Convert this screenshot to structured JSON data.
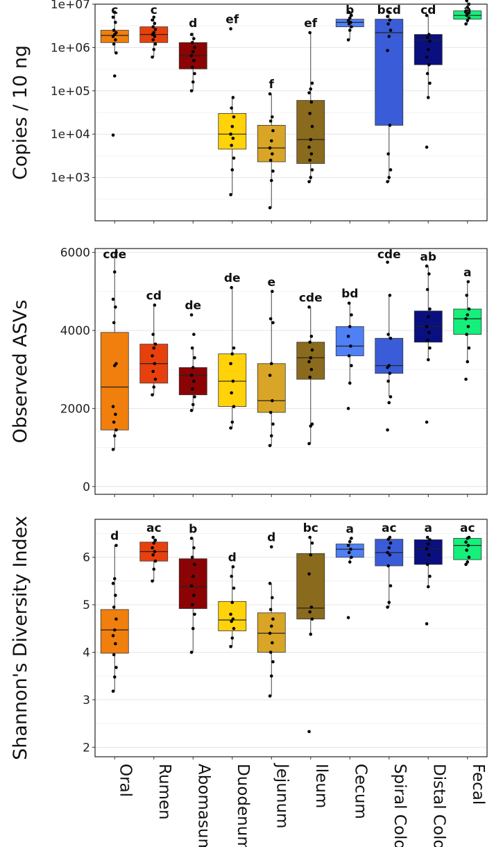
{
  "categories": [
    "Oral",
    "Rumen",
    "Abomasum",
    "Duodenum",
    "Jejunum",
    "Ileum",
    "Cecum",
    "Spiral Colon",
    "Distal Colon",
    "Fecal"
  ],
  "colors": [
    "#F07F0E",
    "#E8400C",
    "#8B0304",
    "#FFD20A",
    "#D9A526",
    "#8A6A1C",
    "#4F80F5",
    "#3A5CD8",
    "#0A0F80",
    "#14F07A"
  ],
  "chart_data": [
    {
      "type": "box",
      "ylabel": "Copies / 10 ng",
      "yscale": "log",
      "ylim": [
        100.0,
        10000000.0
      ],
      "yticks": [
        1000.0,
        10000.0,
        100000.0,
        1000000.0,
        10000000.0
      ],
      "ytick_labels": [
        "1e+03",
        "1e+04",
        "1e+05",
        "1e+06",
        "1e+07"
      ],
      "letters": [
        "c",
        "c",
        "d",
        "ef",
        "f",
        "ef",
        "b",
        "bcd",
        "cd",
        "a"
      ],
      "boxes": [
        {
          "q1": 1300000.0,
          "median": 1900000.0,
          "q3": 2500000.0,
          "whislo": 750000.0,
          "whishi": 6500000.0
        },
        {
          "q1": 1300000.0,
          "median": 2000000.0,
          "q3": 3000000.0,
          "whislo": 600000.0,
          "whishi": 5000000.0
        },
        {
          "q1": 320000.0,
          "median": 650000.0,
          "q3": 1300000.0,
          "whislo": 100000.0,
          "whishi": 2200000.0
        },
        {
          "q1": 4500.0,
          "median": 10000.0,
          "q3": 30000.0,
          "whislo": 400.0,
          "whishi": 70000.0
        },
        {
          "q1": 2300.0,
          "median": 4800.0,
          "q3": 16000.0,
          "whislo": 200.0,
          "whishi": 85000.0
        },
        {
          "q1": 2100.0,
          "median": 7500.0,
          "q3": 60000.0,
          "whislo": 800.0,
          "whishi": 2200000.0
        },
        {
          "q1": 3000000.0,
          "median": 3800000.0,
          "q3": 4500000.0,
          "whislo": 1500000.0,
          "whishi": 6500000.0
        },
        {
          "q1": 16000.0,
          "median": 2200000.0,
          "q3": 4500000.0,
          "whislo": 800.0,
          "whishi": 6500000.0
        },
        {
          "q1": 400000.0,
          "median": 1500000.0,
          "q3": 2000000.0,
          "whislo": 70000.0,
          "whishi": 5500000.0
        },
        {
          "q1": 4500000.0,
          "median": 5500000.0,
          "q3": 7000000.0,
          "whislo": 3500000.0,
          "whishi": 12000000.0
        }
      ],
      "points": [
        [
          9500.0,
          220000.0,
          750000.0,
          1200000.0,
          1500000.0,
          1800000.0,
          2000000.0,
          2200000.0,
          2500000.0,
          3800000.0,
          5000000.0,
          6500000.0
        ],
        [
          600000.0,
          900000.0,
          1200000.0,
          1500000.0,
          1800000.0,
          2000000.0,
          2200000.0,
          2600000.0,
          3000000.0,
          3600000.0,
          4300000.0,
          5000000.0
        ],
        [
          100000.0,
          160000.0,
          250000.0,
          350000.0,
          500000.0,
          650000.0,
          800000.0,
          1000000.0,
          1300000.0,
          1600000.0,
          2000000.0
        ],
        [
          400.0,
          1500.0,
          2800.0,
          5500.0,
          8000.0,
          10000.0,
          15000.0,
          25000.0,
          40000.0,
          70000.0,
          2700000.0
        ],
        [
          200.0,
          850.0,
          1400.0,
          2500.0,
          3500.0,
          4800.0,
          7000.0,
          12000.0,
          20000.0,
          25000.0,
          85000.0
        ],
        [
          800.0,
          1000.0,
          1500.0,
          2500.0,
          3500.0,
          5000.0,
          7500.0,
          15000.0,
          30000.0,
          55000.0,
          90000.0,
          110000.0,
          150000.0,
          2200000.0
        ],
        [
          1500000.0,
          2500000.0,
          3000000.0,
          3500000.0,
          3800000.0,
          4200000.0,
          4800000.0,
          5500000.0,
          6500000.0
        ],
        [
          800.0,
          1000.0,
          1500.0,
          3500.0,
          16000.0,
          850000.0,
          1800000.0,
          2500000.0,
          3500000.0,
          4300000.0,
          5200000.0,
          6500000.0
        ],
        [
          5000.0,
          70000.0,
          150000.0,
          250000.0,
          400000.0,
          600000.0,
          900000.0,
          1400000.0,
          1700000.0,
          2000000.0,
          5500000.0
        ],
        [
          3500000.0,
          4200000.0,
          4800000.0,
          5500000.0,
          6200000.0,
          7000000.0,
          8500000.0,
          10000000.0,
          12000000.0
        ]
      ]
    },
    {
      "type": "box",
      "ylabel": "Observed ASVs",
      "yscale": "linear",
      "ylim": [
        -200,
        6100
      ],
      "yticks": [
        0,
        2000,
        4000,
        6000
      ],
      "ytick_labels": [
        "0",
        "2000",
        "4000",
        "6000"
      ],
      "letters": [
        "cde",
        "cd",
        "de",
        "de",
        "e",
        "cde",
        "bd",
        "cde",
        "ab",
        "a"
      ],
      "boxes": [
        {
          "q1": 1450,
          "median": 2550,
          "q3": 3950,
          "whislo": 950,
          "whishi": 6000
        },
        {
          "q1": 2650,
          "median": 3150,
          "q3": 3650,
          "whislo": 2350,
          "whishi": 4650
        },
        {
          "q1": 2350,
          "median": 2850,
          "q3": 3050,
          "whislo": 1950,
          "whishi": 3550
        },
        {
          "q1": 2050,
          "median": 2700,
          "q3": 3400,
          "whislo": 1500,
          "whishi": 5100
        },
        {
          "q1": 1900,
          "median": 2200,
          "q3": 3150,
          "whislo": 1050,
          "whishi": 5000
        },
        {
          "q1": 2750,
          "median": 3300,
          "q3": 3700,
          "whislo": 1100,
          "whishi": 4600
        },
        {
          "q1": 3350,
          "median": 3600,
          "q3": 4100,
          "whislo": 2650,
          "whishi": 4700
        },
        {
          "q1": 2900,
          "median": 3100,
          "q3": 3800,
          "whislo": 2300,
          "whishi": 4900
        },
        {
          "q1": 3700,
          "median": 4100,
          "q3": 4500,
          "whislo": 3250,
          "whishi": 5650
        },
        {
          "q1": 3900,
          "median": 4300,
          "q3": 4550,
          "whislo": 3200,
          "whishi": 5250
        }
      ],
      "points": [
        [
          950,
          1300,
          1450,
          1650,
          1850,
          2050,
          3100,
          3150,
          4200,
          4600,
          4800,
          5500,
          6000
        ],
        [
          2350,
          2550,
          2750,
          2950,
          3150,
          3350,
          3550,
          3650,
          3900,
          4650
        ],
        [
          1950,
          2100,
          2300,
          2500,
          2700,
          2850,
          3050,
          3300,
          3550,
          3900,
          4400
        ],
        [
          1500,
          1650,
          2050,
          2400,
          2700,
          3150,
          3400,
          3550,
          5100
        ],
        [
          1050,
          1300,
          1600,
          1900,
          2200,
          2850,
          3150,
          4200,
          4300,
          5000
        ],
        [
          1100,
          1550,
          1600,
          2800,
          3000,
          3200,
          3300,
          3500,
          3700,
          3850,
          4600
        ],
        [
          2000,
          2650,
          3100,
          3350,
          3600,
          3850,
          4100,
          4400,
          4700
        ],
        [
          1450,
          2150,
          2300,
          2700,
          2900,
          3050,
          3100,
          3800,
          3900,
          4900,
          5750
        ],
        [
          1650,
          3250,
          3550,
          3750,
          3950,
          4100,
          4350,
          4550,
          5050,
          5450,
          5650
        ],
        [
          2750,
          3200,
          3550,
          3900,
          4100,
          4300,
          4400,
          4550,
          4900,
          5250
        ]
      ]
    },
    {
      "type": "box",
      "ylabel": "Shannon's Diversity Index",
      "yscale": "linear",
      "ylim": [
        1.8,
        6.8
      ],
      "yticks": [
        2,
        3,
        4,
        5,
        6
      ],
      "ytick_labels": [
        "2",
        "3",
        "4",
        "5",
        "6"
      ],
      "letters": [
        "d",
        "ac",
        "b",
        "d",
        "d",
        "bc",
        "a",
        "ac",
        "a",
        "ac"
      ],
      "boxes": [
        {
          "q1": 3.98,
          "median": 4.47,
          "q3": 4.9,
          "whislo": 3.18,
          "whishi": 6.25
        },
        {
          "q1": 5.92,
          "median": 6.12,
          "q3": 6.32,
          "whislo": 5.5,
          "whishi": 6.42
        },
        {
          "q1": 4.92,
          "median": 5.38,
          "q3": 5.97,
          "whislo": 4.0,
          "whishi": 6.4
        },
        {
          "q1": 4.45,
          "median": 4.68,
          "q3": 5.07,
          "whislo": 4.12,
          "whishi": 5.8
        },
        {
          "q1": 4.0,
          "median": 4.4,
          "q3": 4.83,
          "whislo": 3.08,
          "whishi": 5.45
        },
        {
          "q1": 4.7,
          "median": 4.93,
          "q3": 6.08,
          "whislo": 4.38,
          "whishi": 6.42
        },
        {
          "q1": 6.0,
          "median": 6.17,
          "q3": 6.28,
          "whislo": 5.9,
          "whishi": 6.4
        },
        {
          "q1": 5.82,
          "median": 6.1,
          "q3": 6.38,
          "whislo": 4.95,
          "whishi": 6.42
        },
        {
          "q1": 5.85,
          "median": 6.18,
          "q3": 6.37,
          "whislo": 5.38,
          "whishi": 6.42
        },
        {
          "q1": 5.95,
          "median": 6.25,
          "q3": 6.4,
          "whislo": 5.85,
          "whishi": 6.42
        }
      ],
      "points": [
        [
          3.18,
          3.48,
          3.68,
          3.95,
          4.18,
          4.35,
          4.47,
          4.7,
          4.95,
          5.2,
          5.45,
          5.55,
          6.25
        ],
        [
          5.5,
          5.75,
          5.92,
          6.05,
          6.12,
          6.2,
          6.3,
          6.36,
          6.42
        ],
        [
          4.0,
          4.5,
          4.8,
          5.0,
          5.2,
          5.4,
          5.6,
          5.85,
          6.0,
          6.2,
          6.4
        ],
        [
          4.12,
          4.3,
          4.5,
          4.65,
          4.7,
          4.8,
          5.05,
          5.35,
          5.6,
          5.8
        ],
        [
          3.08,
          3.5,
          3.8,
          4.0,
          4.2,
          4.4,
          4.55,
          4.7,
          4.9,
          5.15,
          5.45,
          6.22
        ],
        [
          2.33,
          4.38,
          4.7,
          4.85,
          4.95,
          5.65,
          6.05,
          6.3,
          6.42
        ],
        [
          4.73,
          5.9,
          6.0,
          6.1,
          6.17,
          6.25,
          6.33,
          6.4
        ],
        [
          4.95,
          5.05,
          5.4,
          5.82,
          6.05,
          6.1,
          6.2,
          6.3,
          6.38,
          6.42
        ],
        [
          4.6,
          5.38,
          5.6,
          5.85,
          6.05,
          6.18,
          6.28,
          6.37,
          6.42
        ],
        [
          5.85,
          5.9,
          6.0,
          6.15,
          6.25,
          6.32,
          6.4,
          6.42
        ]
      ]
    }
  ]
}
